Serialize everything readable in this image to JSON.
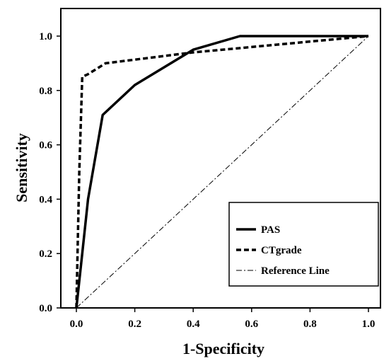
{
  "chart_data": {
    "type": "line",
    "xlabel": "1-Specificity",
    "ylabel": "Sensitivity",
    "xlim": [
      0.0,
      1.0
    ],
    "ylim": [
      0.0,
      1.0
    ],
    "x_ticks": [
      "0.0",
      "0.2",
      "0.4",
      "0.6",
      "0.8",
      "1.0"
    ],
    "y_ticks": [
      "0.0",
      "0.2",
      "0.4",
      "0.6",
      "0.8",
      "1.0"
    ],
    "grid": false,
    "legend_position": "bottom-right",
    "series": [
      {
        "name": "PAS",
        "style": "solid",
        "color": "#000000",
        "x": [
          0.0,
          0.02,
          0.04,
          0.09,
          0.2,
          0.4,
          0.56,
          1.0
        ],
        "y": [
          0.0,
          0.2,
          0.4,
          0.71,
          0.82,
          0.95,
          1.0,
          1.0
        ]
      },
      {
        "name": "CTgrade",
        "style": "dashed",
        "color": "#000000",
        "x": [
          0.0,
          0.01,
          0.02,
          0.04,
          0.1,
          0.4,
          0.6,
          1.0
        ],
        "y": [
          0.0,
          0.5,
          0.85,
          0.86,
          0.9,
          0.94,
          0.96,
          1.0
        ]
      },
      {
        "name": "Reference Line",
        "style": "dash-dot",
        "color": "#000000",
        "x": [
          0.0,
          1.0
        ],
        "y": [
          0.0,
          1.0
        ]
      }
    ]
  }
}
